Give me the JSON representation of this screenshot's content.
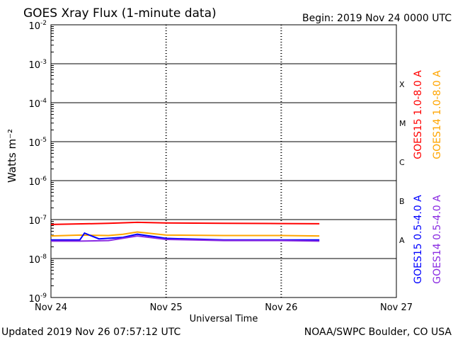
{
  "header": {
    "title": "GOES Xray Flux (1-minute data)",
    "begin": "Begin:  2019 Nov 24 0000 UTC"
  },
  "footer": {
    "updated": "Updated 2019 Nov 26 07:57:12 UTC",
    "credit": "NOAA/SWPC Boulder, CO USA"
  },
  "chart_data": {
    "type": "line",
    "title": "GOES Xray Flux (1-minute data)",
    "xlabel": "Universal Time",
    "ylabel": "Watts m⁻²",
    "y_scale": "log",
    "ylim": [
      1e-09,
      0.01
    ],
    "xlim": [
      "2019-11-24 00:00",
      "2019-11-27 00:00"
    ],
    "x_ticks": [
      "Nov 24",
      "Nov 25",
      "Nov 26",
      "Nov 27"
    ],
    "y_ticks": [
      {
        "base": "10",
        "exp": "-9"
      },
      {
        "base": "10",
        "exp": "-8"
      },
      {
        "base": "10",
        "exp": "-7"
      },
      {
        "base": "10",
        "exp": "-6"
      },
      {
        "base": "10",
        "exp": "-5"
      },
      {
        "base": "10",
        "exp": "-4"
      },
      {
        "base": "10",
        "exp": "-3"
      },
      {
        "base": "10",
        "exp": "-2"
      }
    ],
    "flare_classes": [
      {
        "label": "A",
        "flux": 3e-08
      },
      {
        "label": "B",
        "flux": 3e-07
      },
      {
        "label": "C",
        "flux": 3e-06
      },
      {
        "label": "M",
        "flux": 3e-05
      },
      {
        "label": "X",
        "flux": 0.0003
      }
    ],
    "grid": true,
    "series": [
      {
        "name": "GOES15 1.0-8.0 A",
        "color": "#ff0000",
        "x": [
          "2019-11-24 00:00",
          "2019-11-24 12:00",
          "2019-11-24 18:00",
          "2019-11-25 00:00",
          "2019-11-25 12:00",
          "2019-11-26 00:00",
          "2019-11-26 07:57"
        ],
        "y": [
          7.5e-08,
          8e-08,
          8.5e-08,
          8.2e-08,
          8e-08,
          7.9e-08,
          7.8e-08
        ]
      },
      {
        "name": "GOES14 1.0-8.0 A",
        "color": "#ffa500",
        "x": [
          "2019-11-24 00:00",
          "2019-11-24 06:00",
          "2019-11-24 12:00",
          "2019-11-24 15:00",
          "2019-11-24 18:00",
          "2019-11-25 00:00",
          "2019-11-25 12:00",
          "2019-11-26 00:00",
          "2019-11-26 07:57"
        ],
        "y": [
          3.8e-08,
          4e-08,
          3.9e-08,
          4.2e-08,
          4.8e-08,
          4e-08,
          3.9e-08,
          3.9e-08,
          3.8e-08
        ]
      },
      {
        "name": "GOES15 0.5-4.0 A",
        "color": "#0000ff",
        "x": [
          "2019-11-24 00:00",
          "2019-11-24 06:00",
          "2019-11-24 07:00",
          "2019-11-24 10:00",
          "2019-11-24 15:00",
          "2019-11-24 18:00",
          "2019-11-25 00:00",
          "2019-11-25 12:00",
          "2019-11-26 00:00",
          "2019-11-26 07:57"
        ],
        "y": [
          3e-08,
          3e-08,
          4.5e-08,
          3.2e-08,
          3.5e-08,
          4.2e-08,
          3.3e-08,
          3e-08,
          3e-08,
          3e-08
        ]
      },
      {
        "name": "GOES14 0.5-4.0 A",
        "color": "#8a2be2",
        "x": [
          "2019-11-24 00:00",
          "2019-11-24 06:00",
          "2019-11-24 12:00",
          "2019-11-24 18:00",
          "2019-11-25 00:00",
          "2019-11-25 12:00",
          "2019-11-26 00:00",
          "2019-11-26 07:57"
        ],
        "y": [
          2.8e-08,
          2.8e-08,
          2.9e-08,
          3.8e-08,
          3.1e-08,
          2.9e-08,
          2.9e-08,
          2.8e-08
        ]
      }
    ]
  }
}
